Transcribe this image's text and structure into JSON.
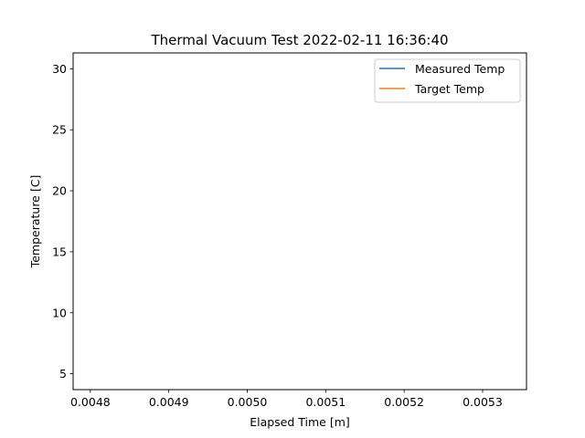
{
  "chart_data": {
    "type": "line",
    "title": "Thermal Vacuum Test 2022-02-11 16:36:40",
    "xlabel": "Elapsed Time [m]",
    "ylabel": "Temperature [C]",
    "xlim": [
      0.004778,
      0.005356
    ],
    "ylim": [
      3.7,
      31.3
    ],
    "xticks": [
      "0.0048",
      "0.0049",
      "0.0050",
      "0.0051",
      "0.0052",
      "0.0053"
    ],
    "xtick_values": [
      0.0048,
      0.0049,
      0.005,
      0.0051,
      0.0052,
      0.0053
    ],
    "yticks": [
      "5",
      "10",
      "15",
      "20",
      "25",
      "30"
    ],
    "ytick_values": [
      5,
      10,
      15,
      20,
      25,
      30
    ],
    "grid": false,
    "legend_position": "top-right",
    "series": [
      {
        "name": "Measured Temp",
        "color": "#1f77b4",
        "x": [],
        "y": []
      },
      {
        "name": "Target Temp",
        "color": "#ff7f0e",
        "x": [],
        "y": []
      }
    ]
  }
}
